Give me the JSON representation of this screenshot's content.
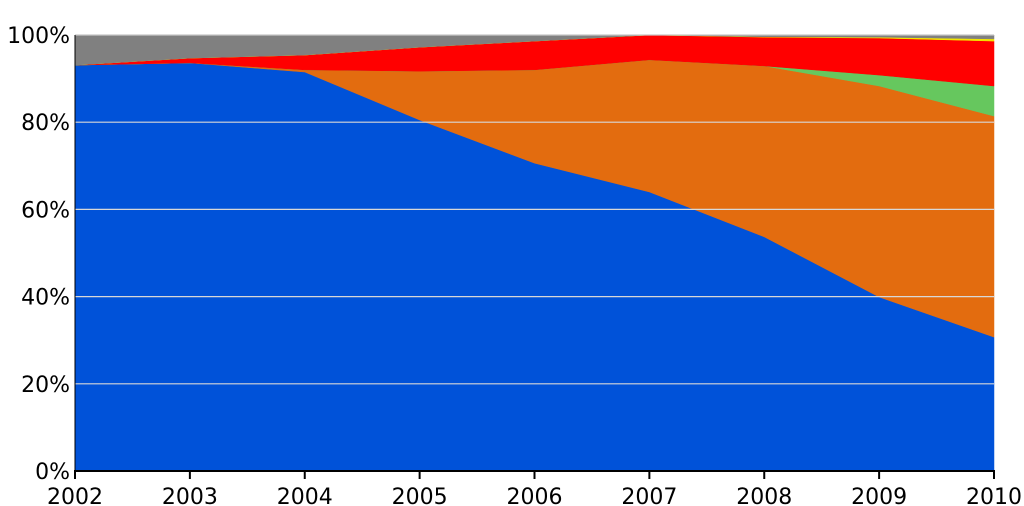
{
  "chart_data": {
    "type": "area",
    "stacked": true,
    "normalized": true,
    "title": "",
    "xlabel": "",
    "ylabel": "",
    "x": [
      2002,
      2003,
      2004,
      2005,
      2006,
      2007,
      2008,
      2009,
      2010
    ],
    "xtick_labels": [
      "2002",
      "2003",
      "2004",
      "2005",
      "2006",
      "2007",
      "2008",
      "2009",
      "2010"
    ],
    "ytick_labels": [
      "0%",
      "20%",
      "40%",
      "60%",
      "80%",
      "100%"
    ],
    "yticks": [
      0,
      20,
      40,
      60,
      80,
      100
    ],
    "ylim": [
      0,
      100
    ],
    "grid": true,
    "legend": "none",
    "series": [
      {
        "color": "#0052d9",
        "values": [
          93.1,
          93.6,
          91.5,
          80.5,
          70.6,
          64.0,
          53.7,
          39.9,
          30.7
        ]
      },
      {
        "color": "#e36c0f",
        "values": [
          0,
          0,
          0.5,
          11.2,
          21.4,
          30.3,
          39.2,
          48.4,
          50.7
        ]
      },
      {
        "color": "#66c75e",
        "values": [
          0,
          0,
          0,
          0,
          0,
          0,
          0,
          2.5,
          6.9
        ]
      },
      {
        "color": "#ff0000",
        "values": [
          0,
          1.1,
          3.4,
          5.5,
          6.6,
          5.7,
          6.6,
          8.5,
          10.3
        ]
      },
      {
        "color": "#f2e600",
        "values": [
          0,
          0,
          0,
          0,
          0,
          0,
          0.1,
          0.2,
          0.5
        ]
      },
      {
        "color": "#808080",
        "values": [
          6.9,
          5.3,
          4.6,
          2.8,
          1.4,
          0,
          0.4,
          0.5,
          0.9
        ]
      }
    ]
  }
}
